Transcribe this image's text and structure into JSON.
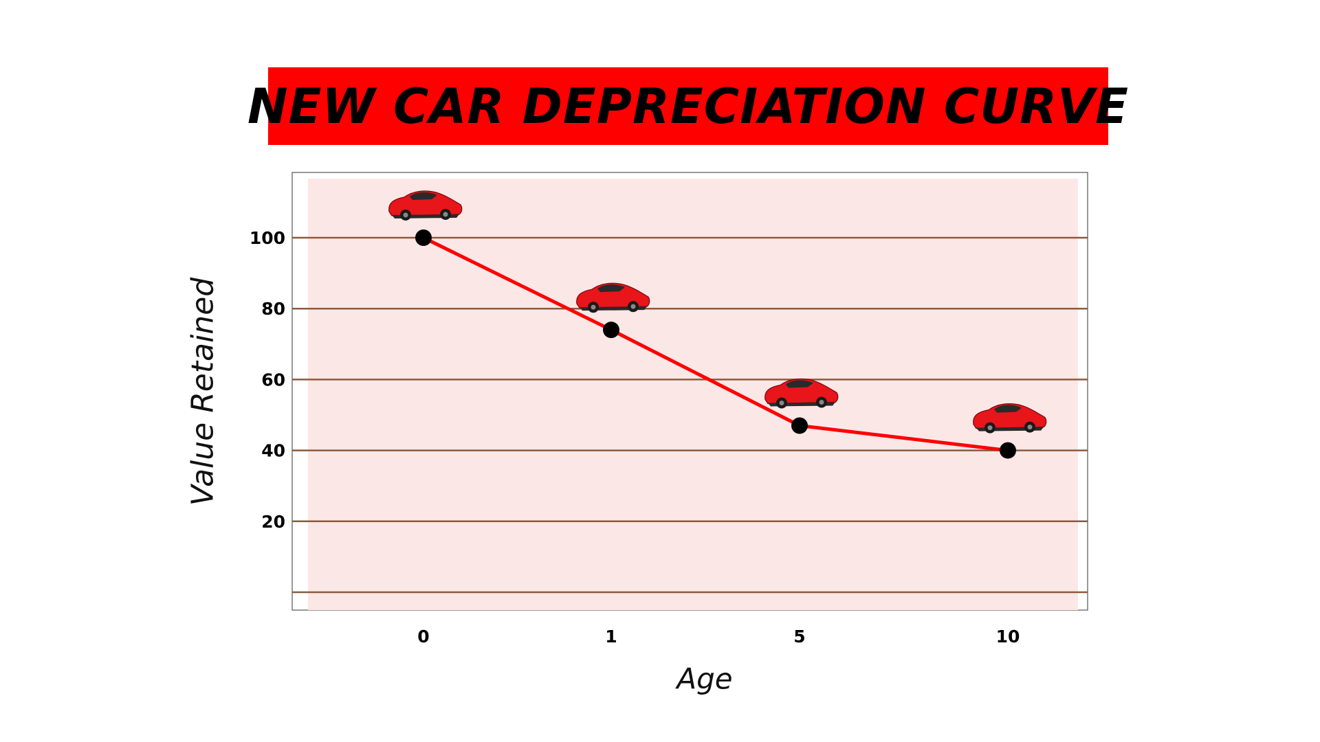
{
  "colors": {
    "title_background": "#ff0000",
    "plot_background": "#fce7e7",
    "gridline": "#8b5a3c",
    "line": "#ff0000",
    "marker": "#000000",
    "car": "#e8151b"
  },
  "chart_data": {
    "type": "line",
    "title": "NEW CAR DEPRECIATION CURVE",
    "xlabel": "Age",
    "ylabel": "Value Retained",
    "categories": [
      "0",
      "1",
      "5",
      "10"
    ],
    "series": [
      {
        "values": [
          100,
          74,
          47,
          40
        ],
        "marker": "car-icon"
      }
    ],
    "yticks": [
      100,
      80,
      60,
      40,
      20
    ],
    "ylim": [
      0,
      110
    ],
    "grid": true,
    "gridlines": [
      0,
      20,
      40,
      60,
      80,
      100
    ]
  }
}
